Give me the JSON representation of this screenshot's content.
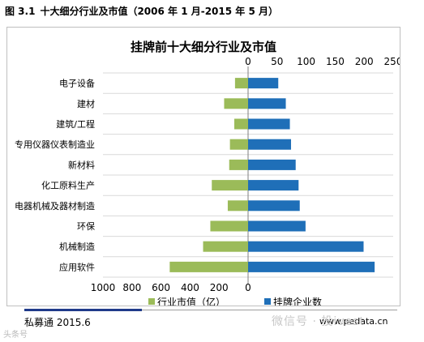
{
  "caption": {
    "figure_number": "图 3.1",
    "text": "十大细分行业及市值（2006 年 1 月-2015 年 5 月）"
  },
  "footer": {
    "source": "私募通 2015.6",
    "site": "www.pedata.cn"
  },
  "watermarks": {
    "left": "头条号",
    "right": "微信号 · 投ivest"
  },
  "colors": {
    "green": "#9bbb59",
    "blue": "#1f6fb8"
  },
  "chart_data": {
    "type": "bar",
    "title": "挂牌前十大细分行业及市值",
    "categories": [
      "电子设备",
      "建材",
      "建筑/工程",
      "专用仪器仪表制造业",
      "新材料",
      "化工原料生产",
      "电器机械及器材制造",
      "环保",
      "机械制造",
      "应用软件"
    ],
    "series": [
      {
        "name": "行业市值（亿）",
        "axis": "bottom",
        "direction": "left",
        "values": [
          90,
          165,
          95,
          125,
          130,
          250,
          140,
          260,
          310,
          540
        ]
      },
      {
        "name": "挂牌企业数",
        "axis": "top",
        "direction": "right",
        "values": [
          52,
          65,
          72,
          74,
          82,
          87,
          89,
          99,
          199,
          218
        ]
      }
    ],
    "top_axis": {
      "min": 0,
      "max": 250,
      "ticks": [
        0,
        50,
        100,
        150,
        200,
        250
      ]
    },
    "bottom_axis": {
      "min": 0,
      "max": 1000,
      "ticks": [
        1000,
        800,
        600,
        400,
        200,
        0
      ]
    },
    "legend_position": "bottom",
    "grid": true
  }
}
